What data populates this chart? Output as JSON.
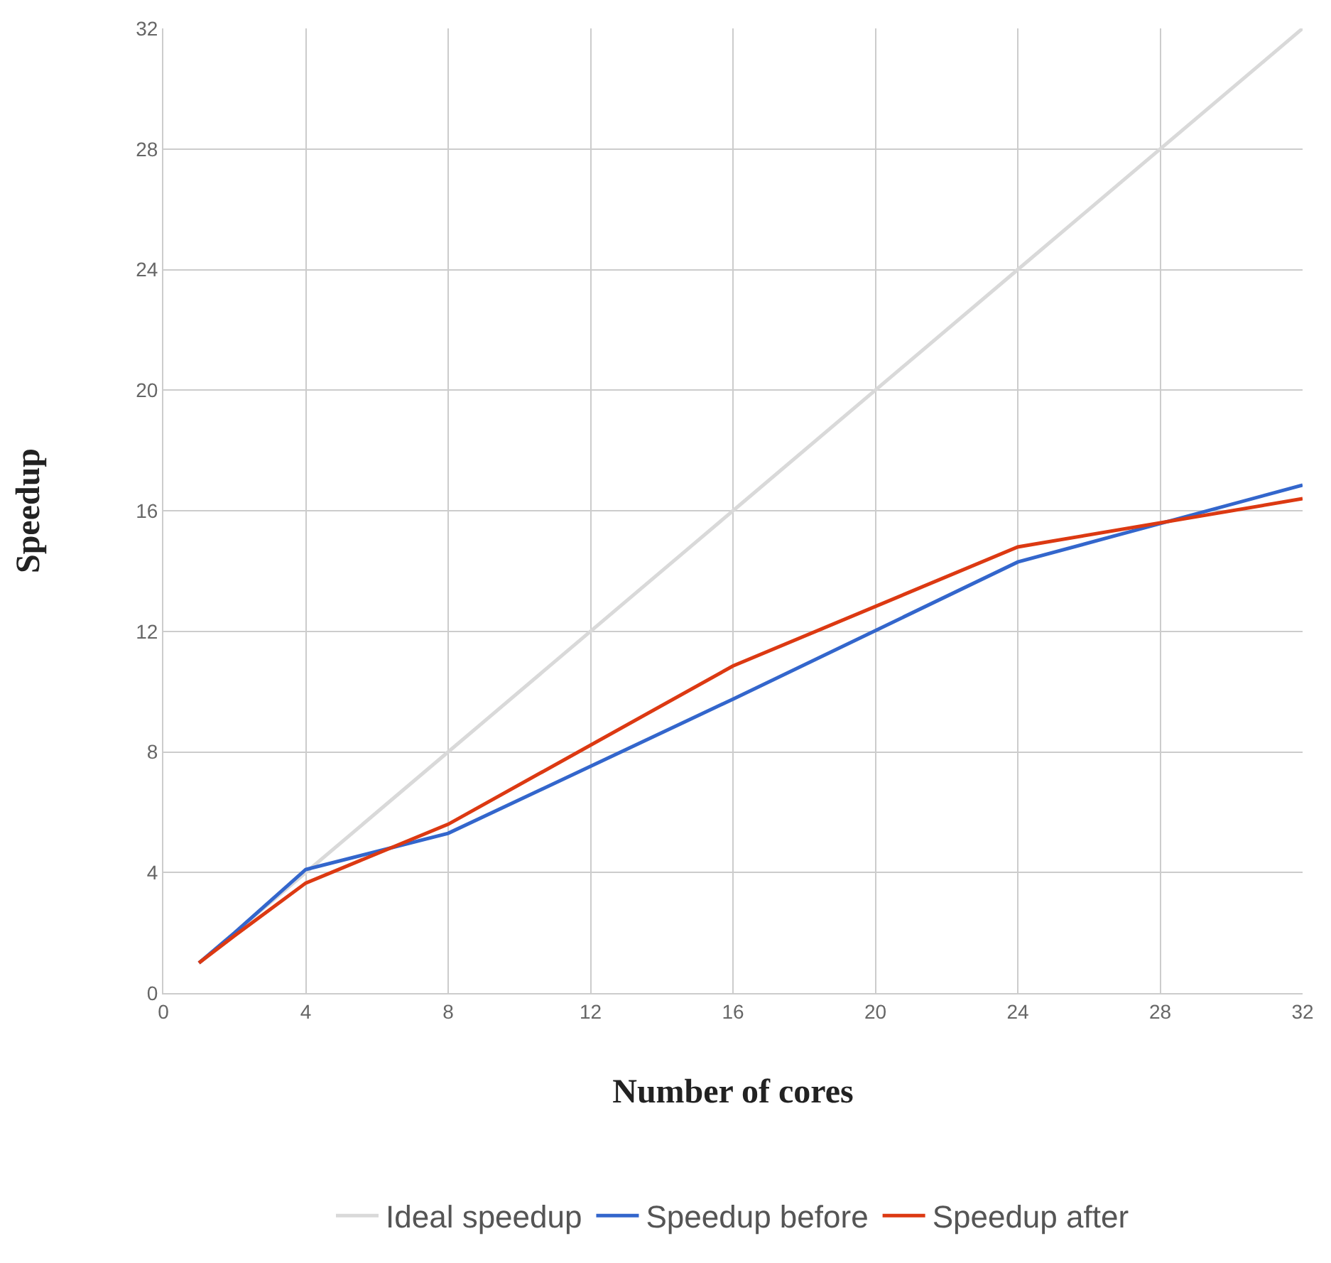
{
  "chart_data": {
    "type": "line",
    "xlabel": "Number of cores",
    "ylabel": "Speedup",
    "x": [
      1,
      2,
      4,
      8,
      16,
      24,
      32
    ],
    "series": [
      {
        "name": "Speedup before",
        "color": "#3366cc",
        "values": [
          1.0,
          2.0,
          4.1,
          5.3,
          9.75,
          14.3,
          16.85
        ]
      },
      {
        "name": "Speedup after",
        "color": "#dc3912",
        "values": [
          1.0,
          1.9,
          3.65,
          5.6,
          10.85,
          14.8,
          16.4
        ]
      },
      {
        "name": "Ideal speedup",
        "color": "#d9d9d9",
        "values": [
          1,
          2,
          4,
          8,
          16,
          24,
          32
        ]
      }
    ],
    "xlim": [
      0,
      32
    ],
    "xticks": [
      0,
      4,
      8,
      12,
      16,
      20,
      24,
      28,
      32
    ],
    "ylim": [
      0,
      32
    ],
    "yticks": [
      0,
      4,
      8,
      12,
      16,
      20,
      24,
      28,
      32
    ],
    "grid": true,
    "legend": "bottom",
    "marker": "none",
    "line_style": "solid"
  }
}
